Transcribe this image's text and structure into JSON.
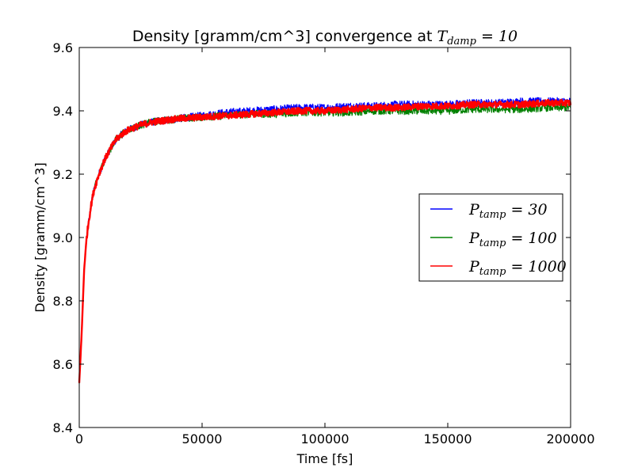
{
  "chart_data": {
    "type": "line",
    "title": "Density [gramm/cm^3] convergence at",
    "title_math": {
      "base": "T",
      "sub": "damp",
      "rest": " = 10"
    },
    "xlabel": "Time [fs]",
    "ylabel": "Density [gramm/cm^3]",
    "xlim": [
      0,
      200000
    ],
    "ylim": [
      8.4,
      9.6
    ],
    "xticks": [
      0,
      50000,
      100000,
      150000,
      200000
    ],
    "xtick_labels": [
      "0",
      "50000",
      "100000",
      "150000",
      "200000"
    ],
    "yticks": [
      8.4,
      8.6,
      8.8,
      9.0,
      9.2,
      9.4,
      9.6
    ],
    "ytick_labels": [
      "8.4",
      "8.6",
      "8.8",
      "9.0",
      "9.2",
      "9.4",
      "9.6"
    ],
    "grid": false,
    "legend_position": "center-right",
    "series": [
      {
        "name": "P_tamp = 30",
        "legend_math": {
          "base": "P",
          "sub": "tamp",
          "rest": " = 30"
        },
        "color": "#0000ff",
        "x": [
          0,
          1000,
          2000,
          3000,
          4000,
          5000,
          6000,
          8000,
          10000,
          12000,
          15000,
          18000,
          20000,
          25000,
          30000,
          40000,
          50000,
          60000,
          70000,
          80000,
          90000,
          100000,
          110000,
          120000,
          130000,
          140000,
          150000,
          160000,
          170000,
          180000,
          190000,
          200000
        ],
        "y": [
          8.54,
          8.7,
          8.9,
          9.0,
          9.06,
          9.11,
          9.15,
          9.2,
          9.24,
          9.27,
          9.31,
          9.33,
          9.34,
          9.355,
          9.365,
          9.375,
          9.385,
          9.395,
          9.4,
          9.405,
          9.41,
          9.41,
          9.415,
          9.415,
          9.42,
          9.42,
          9.42,
          9.425,
          9.425,
          9.43,
          9.43,
          9.43
        ]
      },
      {
        "name": "P_tamp = 100",
        "legend_math": {
          "base": "P",
          "sub": "tamp",
          "rest": " = 100"
        },
        "color": "#008000",
        "x": [
          0,
          1000,
          2000,
          3000,
          4000,
          5000,
          6000,
          8000,
          10000,
          12000,
          15000,
          18000,
          20000,
          25000,
          30000,
          40000,
          50000,
          60000,
          70000,
          80000,
          90000,
          100000,
          110000,
          120000,
          130000,
          140000,
          150000,
          160000,
          170000,
          180000,
          190000,
          200000
        ],
        "y": [
          8.54,
          8.7,
          8.9,
          9.0,
          9.06,
          9.11,
          9.15,
          9.2,
          9.24,
          9.27,
          9.31,
          9.33,
          9.34,
          9.355,
          9.365,
          9.375,
          9.38,
          9.385,
          9.39,
          9.39,
          9.395,
          9.395,
          9.395,
          9.4,
          9.4,
          9.4,
          9.4,
          9.405,
          9.405,
          9.405,
          9.41,
          9.41
        ]
      },
      {
        "name": "P_tamp = 1000",
        "legend_math": {
          "base": "P",
          "sub": "tamp",
          "rest": " = 1000"
        },
        "color": "#ff0000",
        "x": [
          0,
          1000,
          2000,
          3000,
          4000,
          5000,
          6000,
          8000,
          10000,
          12000,
          15000,
          18000,
          20000,
          25000,
          30000,
          40000,
          50000,
          60000,
          70000,
          80000,
          90000,
          100000,
          110000,
          120000,
          130000,
          140000,
          150000,
          160000,
          170000,
          180000,
          190000,
          200000
        ],
        "y": [
          8.54,
          8.7,
          8.9,
          9.0,
          9.06,
          9.11,
          9.15,
          9.2,
          9.24,
          9.27,
          9.31,
          9.33,
          9.34,
          9.355,
          9.365,
          9.375,
          9.38,
          9.385,
          9.39,
          9.395,
          9.4,
          9.4,
          9.405,
          9.41,
          9.41,
          9.415,
          9.415,
          9.42,
          9.42,
          9.42,
          9.425,
          9.425
        ]
      }
    ]
  }
}
